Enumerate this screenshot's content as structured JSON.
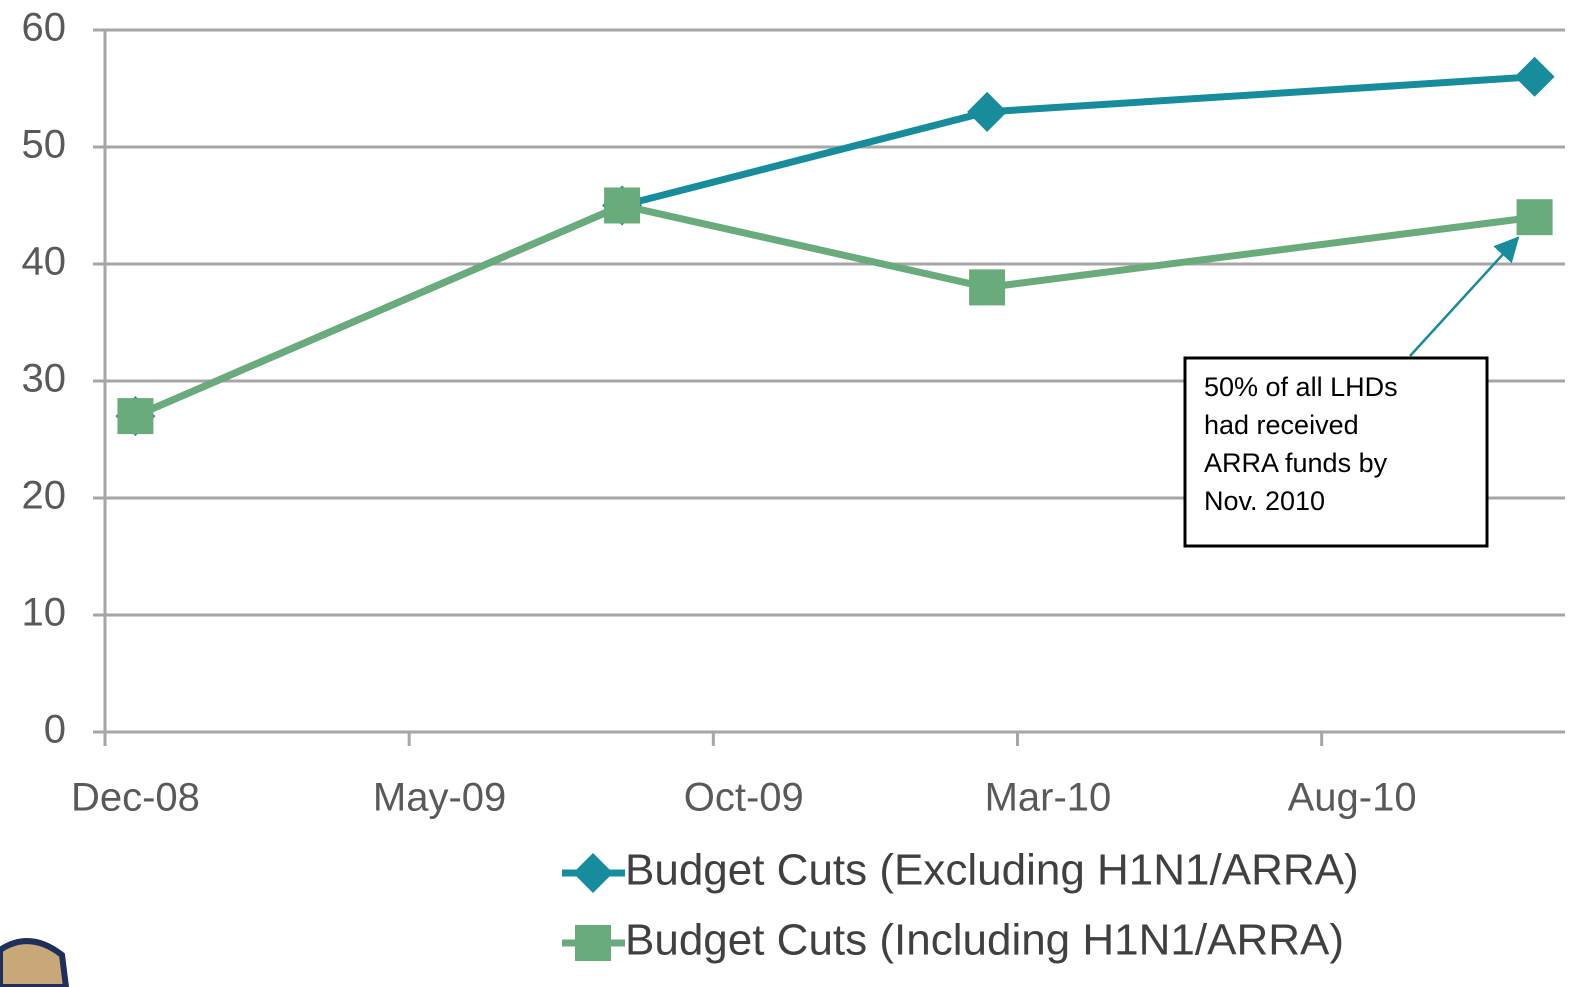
{
  "chart_data": {
    "type": "line",
    "x": [
      "2008-12",
      "2009-08",
      "2010-02",
      "2010-11"
    ],
    "series": [
      {
        "name": "Budget Cuts (Excluding H1N1/ARRA)",
        "color": "#168c9c",
        "marker": "diamond",
        "values": [
          27,
          45,
          53,
          56
        ]
      },
      {
        "name": "Budget Cuts (Including H1N1/ARRA)",
        "color": "#6aab7c",
        "marker": "square",
        "values": [
          27,
          45,
          38,
          44
        ]
      }
    ],
    "xlim": [
      "2008-12",
      "2010-11"
    ],
    "xticks": [
      {
        "value": "2008-12",
        "label": "Dec-08"
      },
      {
        "value": "2009-05",
        "label": "May-09"
      },
      {
        "value": "2009-10",
        "label": "Oct-09"
      },
      {
        "value": "2010-03",
        "label": "Mar-10"
      },
      {
        "value": "2010-08",
        "label": "Aug-10"
      }
    ],
    "ylim": [
      0,
      60
    ],
    "yticks": [
      0,
      10,
      20,
      30,
      40,
      50,
      60
    ],
    "grid": true,
    "legend": "bottom",
    "annotation": {
      "lines": [
        "50% of all LHDs",
        "had received",
        "ARRA funds by",
        "Nov. 2010"
      ]
    }
  }
}
